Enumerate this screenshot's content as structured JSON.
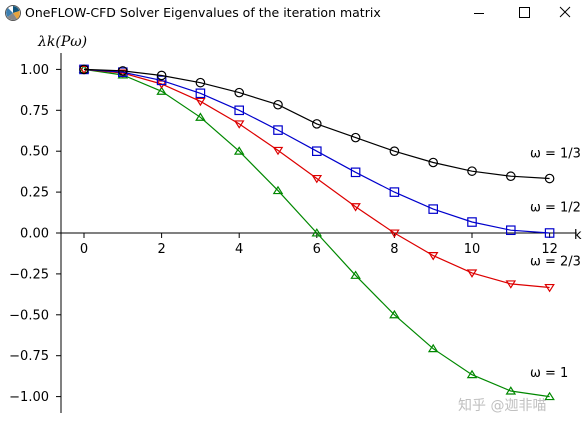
{
  "window": {
    "title": "OneFLOW-CFD Solver Eigenvalues of the iteration matrix",
    "icon": "matplotlib-figure-icon",
    "controls": [
      "minimize-icon",
      "maximize-icon",
      "close-icon"
    ]
  },
  "chart_data": {
    "type": "line",
    "ylabel": "λk(Pω)",
    "xlabel": "k",
    "xlim": [
      -0.6,
      12.7
    ],
    "ylim": [
      -1.1,
      1.1
    ],
    "x_ticks": [
      0,
      2,
      4,
      6,
      8,
      10,
      12
    ],
    "x_tick_labels": [
      "0",
      "2",
      "4",
      "6",
      "8",
      "10",
      "12"
    ],
    "y_ticks": [
      1.0,
      0.75,
      0.5,
      0.25,
      0.0,
      -0.25,
      -0.5,
      -0.75,
      -1.0
    ],
    "y_tick_labels": [
      "1.00",
      "0.75",
      "0.50",
      "0.25",
      "0.00",
      "−0.25",
      "−0.50",
      "−0.75",
      "−1.00"
    ],
    "grid": false,
    "x": [
      0,
      1,
      2,
      3,
      4,
      5,
      6,
      7,
      8,
      9,
      10,
      11,
      12
    ],
    "series": [
      {
        "name": "ω = 1/3",
        "color": "#000000",
        "marker": "circle",
        "values": [
          1.0,
          0.991,
          0.963,
          0.919,
          0.858,
          0.784,
          0.667,
          0.583,
          0.5,
          0.431,
          0.378,
          0.347,
          0.333
        ],
        "label_at": [
          11.7,
          0.46
        ]
      },
      {
        "name": "ω = 1/2",
        "color": "#0000cc",
        "marker": "square",
        "values": [
          1.0,
          0.983,
          0.933,
          0.854,
          0.75,
          0.629,
          0.5,
          0.371,
          0.25,
          0.146,
          0.067,
          0.017,
          0.0
        ],
        "label_at": [
          11.7,
          0.13
        ]
      },
      {
        "name": "ω = 2/3",
        "color": "#dd0000",
        "marker": "triangle-down",
        "values": [
          1.0,
          0.978,
          0.911,
          0.805,
          0.667,
          0.505,
          0.333,
          0.161,
          0.0,
          -0.138,
          -0.244,
          -0.311,
          -0.333
        ],
        "label_at": [
          11.7,
          -0.2
        ]
      },
      {
        "name": "ω = 1",
        "color": "#008800",
        "marker": "triangle-up",
        "values": [
          1.0,
          0.966,
          0.866,
          0.707,
          0.5,
          0.259,
          0.0,
          -0.259,
          -0.5,
          -0.707,
          -0.866,
          -0.966,
          -1.0
        ],
        "label_at": [
          11.7,
          -0.88
        ]
      }
    ]
  },
  "watermark": "知乎 @迦非喵"
}
